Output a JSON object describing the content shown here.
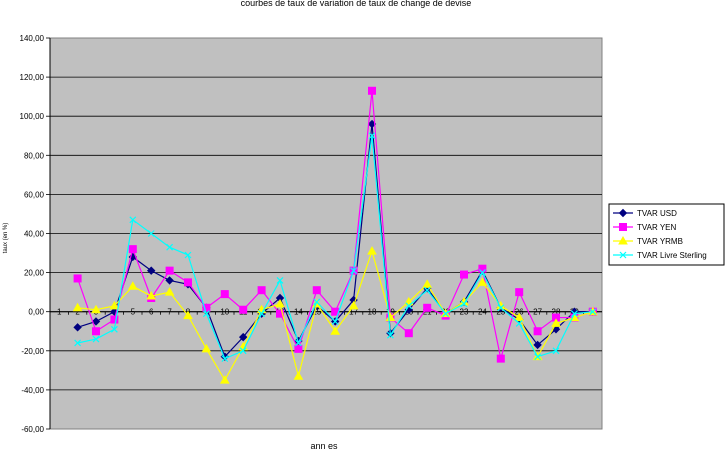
{
  "chart_data": {
    "type": "line",
    "title": "courbes de taux de variation de taux de change de devise",
    "xlabel": "ann es",
    "ylabel": "taux (en %)",
    "categories": [
      "1",
      "2",
      "3",
      "4",
      "5",
      "6",
      "7",
      "8",
      "9",
      "10",
      "11",
      "12",
      "13",
      "14",
      "15",
      "16",
      "17",
      "18",
      "19",
      "20",
      "21",
      "22",
      "23",
      "24",
      "25",
      "26",
      "27",
      "28",
      "29",
      "30"
    ],
    "ylim": [
      -60,
      140
    ],
    "ytick_step": 20,
    "ytick_labels": [
      "-60,00",
      "-40,00",
      "-20,00",
      "0,00",
      "20,00",
      "40,00",
      "60,00",
      "80,00",
      "100,00",
      "120,00",
      "140,00"
    ],
    "grid": "horizontal",
    "plot_background": "#c0c0c0",
    "legend_position": "right",
    "series": [
      {
        "name": "TVAR USD",
        "color": "#000080",
        "marker": "diamond",
        "values": [
          null,
          -8,
          -5,
          0,
          28,
          21,
          16,
          14,
          2,
          -23,
          -13,
          -1,
          7,
          -15,
          3,
          -5,
          6,
          96,
          -11,
          1,
          12,
          -1,
          5,
          21,
          2,
          -4,
          -17,
          -9,
          0,
          0
        ]
      },
      {
        "name": "TVAR YEN",
        "color": "#ff00ff",
        "marker": "square",
        "values": [
          null,
          17,
          -10,
          -4,
          32,
          7,
          21,
          15,
          2,
          9,
          1,
          11,
          -1,
          -19,
          11,
          0,
          21,
          113,
          -3,
          -11,
          2,
          -2,
          19,
          22,
          -24,
          10,
          -10,
          -3,
          -3,
          0
        ]
      },
      {
        "name": "TVAR YRMB",
        "color": "#ffff00",
        "marker": "triangle",
        "values": [
          null,
          2,
          1,
          3,
          13,
          8,
          10,
          -2,
          -19,
          -35,
          -18,
          1,
          4,
          -33,
          4,
          -10,
          3,
          31,
          -3,
          5,
          14,
          -1,
          5,
          15,
          3,
          -3,
          -23,
          -6,
          -3,
          0
        ]
      },
      {
        "name": "TVAR Livre Sterling",
        "color": "#00ffff",
        "marker": "x",
        "values": [
          null,
          -16,
          -14,
          -9,
          47,
          40,
          33,
          29,
          -1,
          -24,
          -20,
          -1,
          16,
          -16,
          5,
          -5,
          21,
          90,
          -12,
          3,
          11,
          -1,
          4,
          20,
          2,
          -6,
          -23,
          -20,
          -1,
          0
        ]
      }
    ]
  }
}
